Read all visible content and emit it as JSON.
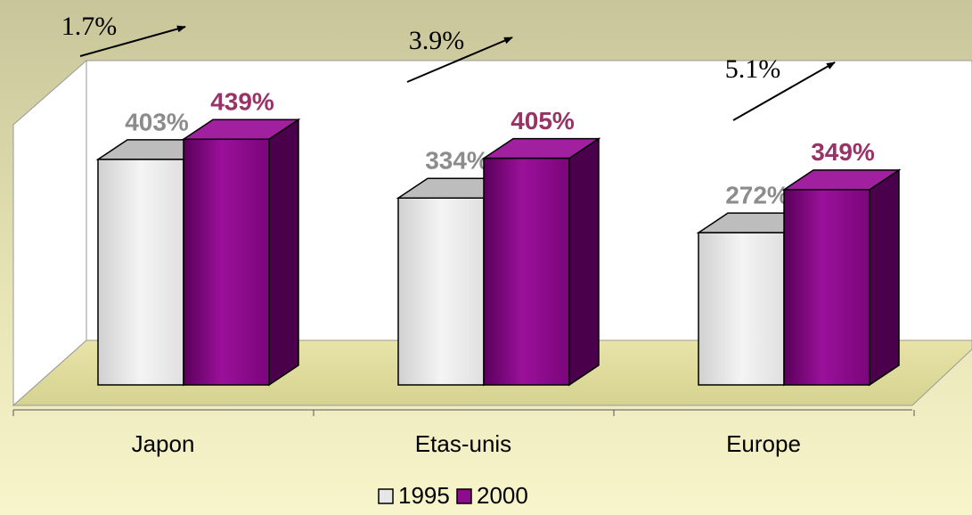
{
  "chart_data": {
    "type": "bar3d",
    "categories": [
      "Japon",
      "Etas-unis",
      "Europe"
    ],
    "series": [
      {
        "name": "1995",
        "color": "#e6e6e6",
        "label_color": "#8c8c8c",
        "values": [
          403,
          334,
          272
        ],
        "value_labels": [
          "403%",
          "334%",
          "272%"
        ]
      },
      {
        "name": "2000",
        "color": "#8e0b8e",
        "label_color": "#993366",
        "values": [
          439,
          405,
          349
        ],
        "value_labels": [
          "439%",
          "405%",
          "349%"
        ]
      }
    ],
    "annotations": [
      "1.7%",
      "3.9%",
      "5.1%"
    ],
    "legend": "bottom"
  }
}
